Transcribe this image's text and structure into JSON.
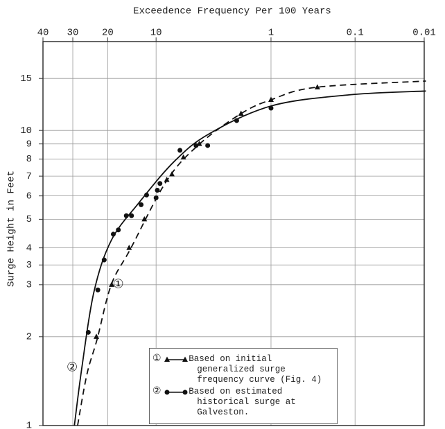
{
  "chart_data": {
    "type": "probability-line",
    "title": "Exceedence Frequency Per 100 Years",
    "y_label": "Surge Height in Feet",
    "xscale": "normal-probability",
    "yscale": "log",
    "xlim": [
      40,
      0.01
    ],
    "xticks": [
      40,
      30,
      20,
      10,
      1,
      0.1,
      0.01
    ],
    "ylim": [
      1,
      20
    ],
    "yticks": [
      1,
      2,
      3,
      {
        "value": 3.5,
        "label": "3"
      },
      4,
      5,
      6,
      7,
      8,
      9,
      10,
      15
    ],
    "grid": true,
    "legend_position": "lower right",
    "series": [
      {
        "name": "Based on initial generalized surge frequency curve (Fig. 4)",
        "curve_label": "①",
        "color": "#111111",
        "marker": "triangle",
        "linestyle": "dashed",
        "x": [
          23,
          19,
          15,
          12,
          8.4,
          7.7,
          6.3,
          4.7,
          2.0,
          1.0,
          0.3
        ],
        "values": [
          2.0,
          3.0,
          4.0,
          5.0,
          6.8,
          7.1,
          8.1,
          9.0,
          11.4,
          12.7,
          14.0
        ],
        "curve_x": [
          28.5,
          25.7,
          22.8,
          19.1,
          14.7,
          8.4,
          4.7,
          2.0,
          1.0,
          0.31,
          0.0094
        ],
        "curve_y": [
          1,
          1.49,
          1.96,
          3.0,
          3.97,
          6.76,
          8.98,
          11.4,
          12.7,
          14.0,
          14.7
        ]
      },
      {
        "name": "Based on estimated historical surge at Galveston.",
        "curve_label": "②",
        "color": "#111111",
        "marker": "circle",
        "linestyle": "solid",
        "x": [
          25.3,
          22.6,
          20.9,
          18.6,
          17.4,
          15.6,
          14.5,
          12.6,
          11.6,
          10,
          9.8,
          9.4,
          6.7,
          5.0,
          4.0,
          2.2,
          1.0
        ],
        "values": [
          2.07,
          2.88,
          3.64,
          4.45,
          4.6,
          5.14,
          5.14,
          5.6,
          6.04,
          5.91,
          6.27,
          6.61,
          8.56,
          8.89,
          8.89,
          10.8,
          11.9
        ],
        "curve_x": [
          29.5,
          27.2,
          23.7,
          19.1,
          13.0,
          7.4,
          3.9,
          1.0,
          0.12,
          0.0094
        ],
        "curve_y": [
          1,
          1.57,
          2.83,
          4.24,
          5.69,
          7.85,
          9.73,
          12.1,
          13.2,
          13.6
        ]
      }
    ]
  }
}
